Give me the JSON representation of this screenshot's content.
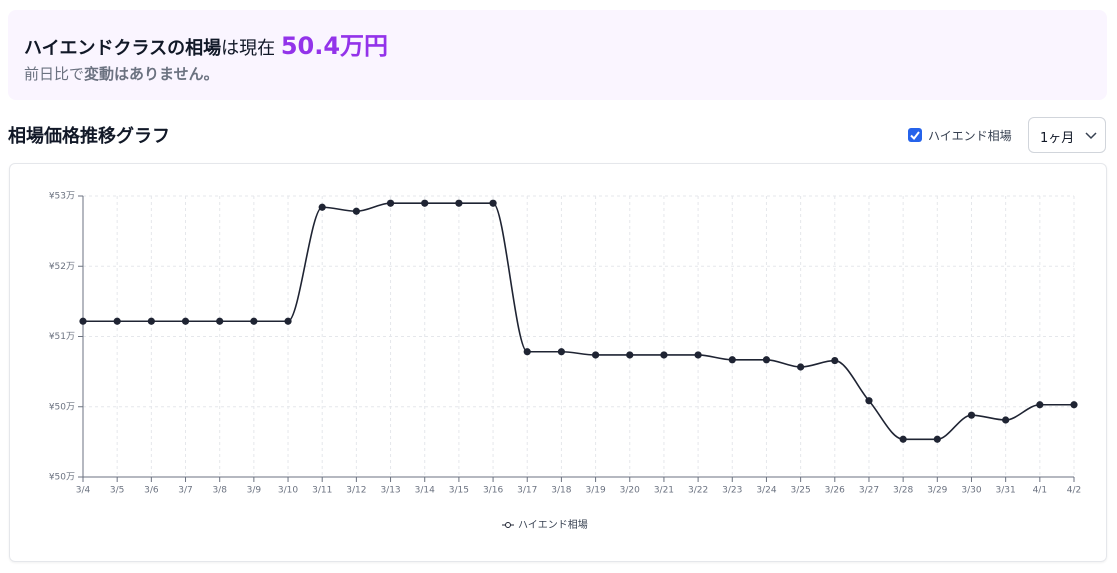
{
  "header": {
    "title_bold": "ハイエンドクラスの相場",
    "title_rest": "は現在",
    "price": "50.4万円",
    "sub_plain": "前日比で",
    "sub_bold": "変動はありません。"
  },
  "section_title": "相場価格推移グラフ",
  "controls": {
    "checkbox_label": "ハイエンド相場",
    "period": "1ヶ月"
  },
  "chart_data": {
    "type": "line",
    "categories": [
      "3/4",
      "3/5",
      "3/6",
      "3/7",
      "3/8",
      "3/9",
      "3/10",
      "3/11",
      "3/12",
      "3/13",
      "3/14",
      "3/15",
      "3/16",
      "3/17",
      "3/18",
      "3/19",
      "3/20",
      "3/21",
      "3/22",
      "3/23",
      "3/24",
      "3/25",
      "3/26",
      "3/27",
      "3/28",
      "3/29",
      "3/30",
      "3/31",
      "4/1",
      "4/2"
    ],
    "series": [
      {
        "name": "ハイエンド相場",
        "color": "#1f2433",
        "values": [
          51.44,
          51.44,
          51.44,
          51.44,
          51.44,
          51.44,
          51.44,
          52.86,
          52.81,
          52.91,
          52.91,
          52.91,
          52.91,
          51.06,
          51.06,
          51.02,
          51.02,
          51.02,
          51.02,
          50.96,
          50.96,
          50.87,
          50.95,
          50.45,
          49.97,
          49.97,
          50.27,
          50.21,
          50.4,
          50.4
        ]
      }
    ],
    "ylim": [
      49.5,
      53
    ],
    "yticks": [
      {
        "value": 49.5,
        "label": "¥50万"
      },
      {
        "value": 50.375,
        "label": "¥50万"
      },
      {
        "value": 51.25,
        "label": "¥51万"
      },
      {
        "value": 52.125,
        "label": "¥52万"
      },
      {
        "value": 53,
        "label": "¥53万"
      }
    ],
    "grid": true,
    "legend": "bottom"
  }
}
